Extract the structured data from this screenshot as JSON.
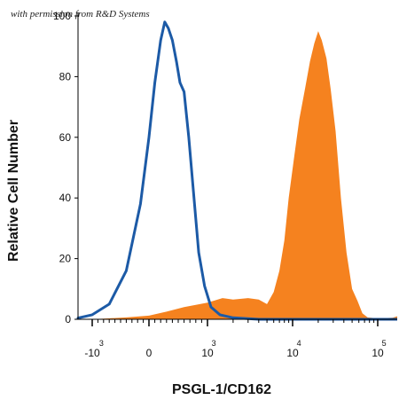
{
  "watermark": "with permission from R&D Systems",
  "colors": {
    "control": "#1c5aa6",
    "stained": "#f5821f",
    "axis": "#000000"
  },
  "chart_data": {
    "type": "area",
    "xlabel": "PSGL-1/CD162",
    "ylabel": "Relative Cell Number",
    "ylim": [
      0,
      100
    ],
    "y_ticks": [
      {
        "value": 0,
        "label": "0"
      },
      {
        "value": 20,
        "label": "20"
      },
      {
        "value": 40,
        "label": "40"
      },
      {
        "value": 60,
        "label": "60"
      },
      {
        "value": 80,
        "label": "80"
      },
      {
        "value": 100,
        "label": "100"
      }
    ],
    "x_scale": "biexponential",
    "x_ticks": [
      {
        "value": -1000,
        "base": "-10",
        "exp": "3"
      },
      {
        "value": 0,
        "base": "0",
        "exp": ""
      },
      {
        "value": 1000,
        "base": "10",
        "exp": "3"
      },
      {
        "value": 10000,
        "base": "10",
        "exp": "4"
      },
      {
        "value": 100000,
        "base": "10",
        "exp": "5"
      }
    ],
    "series": [
      {
        "style": "outline",
        "color": "#1c5aa6",
        "points": [
          [
            -2500,
            0
          ],
          [
            -1400,
            0.4
          ],
          [
            -1000,
            1.5
          ],
          [
            -700,
            5
          ],
          [
            -400,
            16
          ],
          [
            -150,
            38
          ],
          [
            0,
            60
          ],
          [
            100,
            78
          ],
          [
            200,
            92
          ],
          [
            270,
            98
          ],
          [
            330,
            96
          ],
          [
            400,
            92
          ],
          [
            470,
            85
          ],
          [
            530,
            78
          ],
          [
            600,
            75
          ],
          [
            680,
            60
          ],
          [
            760,
            42
          ],
          [
            850,
            22
          ],
          [
            950,
            11
          ],
          [
            1100,
            4
          ],
          [
            1400,
            1.5
          ],
          [
            2000,
            0.5
          ],
          [
            4000,
            0
          ],
          [
            300000,
            0
          ]
        ]
      },
      {
        "style": "filled",
        "color": "#f5821f",
        "points": [
          [
            -1000,
            0
          ],
          [
            -400,
            0.6
          ],
          [
            0,
            1.2
          ],
          [
            300,
            2.5
          ],
          [
            600,
            4
          ],
          [
            1000,
            5.5
          ],
          [
            1500,
            7
          ],
          [
            2000,
            6.5
          ],
          [
            3000,
            7
          ],
          [
            4000,
            6.5
          ],
          [
            5000,
            5
          ],
          [
            6000,
            9
          ],
          [
            7000,
            16
          ],
          [
            8000,
            26
          ],
          [
            9000,
            40
          ],
          [
            10500,
            54
          ],
          [
            12000,
            66
          ],
          [
            14000,
            76
          ],
          [
            16000,
            85
          ],
          [
            18000,
            91
          ],
          [
            20000,
            95
          ],
          [
            22000,
            92
          ],
          [
            25000,
            86
          ],
          [
            28000,
            76
          ],
          [
            32000,
            62
          ],
          [
            37000,
            40
          ],
          [
            43000,
            22
          ],
          [
            50000,
            10
          ],
          [
            58000,
            6
          ],
          [
            66000,
            2
          ],
          [
            76000,
            0.6
          ],
          [
            100000,
            0.3
          ],
          [
            150000,
            0.5
          ],
          [
            200000,
            1
          ],
          [
            250000,
            1.5
          ],
          [
            300000,
            0
          ]
        ]
      }
    ]
  }
}
